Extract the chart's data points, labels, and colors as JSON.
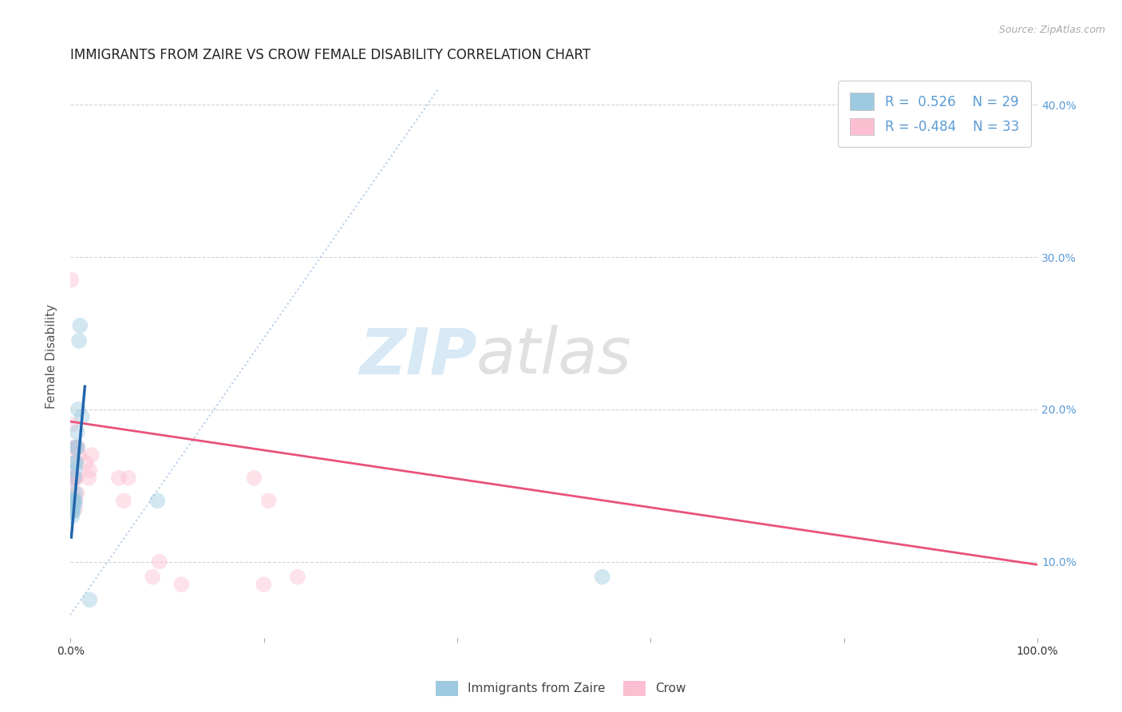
{
  "title": "IMMIGRANTS FROM ZAIRE VS CROW FEMALE DISABILITY CORRELATION CHART",
  "source": "Source: ZipAtlas.com",
  "ylabel": "Female Disability",
  "legend_labels": [
    "Immigrants from Zaire",
    "Crow"
  ],
  "legend_r_blue": "R =  0.526",
  "legend_r_pink": "R = -0.484",
  "legend_n_blue": "N = 29",
  "legend_n_pink": "N = 33",
  "blue_color": "#9ecae1",
  "pink_color": "#fcbfd2",
  "blue_line_color": "#2166ac",
  "pink_line_color": "#e8537a",
  "diag_line_color": "#aec9e8",
  "watermark": "ZIPatlas",
  "xlim": [
    0.0,
    1.0
  ],
  "ylim": [
    0.05,
    0.42
  ],
  "x_ticks": [
    0.0,
    0.2,
    0.4,
    0.6,
    0.8,
    1.0
  ],
  "y_ticks": [
    0.1,
    0.2,
    0.3,
    0.4
  ],
  "background_color": "#ffffff",
  "grid_color": "#c8c8c8",
  "title_fontsize": 12,
  "tick_fontsize": 10,
  "scatter_size": 200,
  "scatter_alpha": 0.45,
  "right_tick_color": "#5b9bd5",
  "blue_scatter_x": [
    0.001,
    0.001,
    0.001,
    0.001,
    0.002,
    0.002,
    0.002,
    0.002,
    0.003,
    0.003,
    0.003,
    0.004,
    0.004,
    0.004,
    0.005,
    0.005,
    0.005,
    0.005,
    0.006,
    0.006,
    0.007,
    0.007,
    0.008,
    0.009,
    0.01,
    0.012,
    0.02,
    0.09,
    0.55
  ],
  "blue_scatter_y": [
    0.133,
    0.135,
    0.137,
    0.14,
    0.13,
    0.133,
    0.137,
    0.14,
    0.133,
    0.137,
    0.14,
    0.137,
    0.14,
    0.155,
    0.14,
    0.145,
    0.16,
    0.165,
    0.165,
    0.175,
    0.175,
    0.185,
    0.2,
    0.245,
    0.255,
    0.195,
    0.075,
    0.14,
    0.09
  ],
  "pink_scatter_x": [
    0.001,
    0.001,
    0.001,
    0.002,
    0.002,
    0.003,
    0.003,
    0.003,
    0.004,
    0.004,
    0.004,
    0.005,
    0.005,
    0.005,
    0.006,
    0.006,
    0.007,
    0.008,
    0.009,
    0.016,
    0.019,
    0.02,
    0.022,
    0.05,
    0.055,
    0.06,
    0.085,
    0.092,
    0.115,
    0.19,
    0.2,
    0.205,
    0.235
  ],
  "pink_scatter_y": [
    0.285,
    0.19,
    0.14,
    0.145,
    0.155,
    0.14,
    0.155,
    0.175,
    0.155,
    0.155,
    0.165,
    0.135,
    0.14,
    0.155,
    0.155,
    0.175,
    0.145,
    0.175,
    0.17,
    0.165,
    0.155,
    0.16,
    0.17,
    0.155,
    0.14,
    0.155,
    0.09,
    0.1,
    0.085,
    0.155,
    0.085,
    0.14,
    0.09
  ],
  "blue_line_x": [
    0.001,
    0.015
  ],
  "blue_line_y": [
    0.116,
    0.215
  ],
  "pink_line_x": [
    0.0,
    1.0
  ],
  "pink_line_y": [
    0.192,
    0.098
  ],
  "diag_line_x": [
    0.0,
    0.38
  ],
  "diag_line_y": [
    0.065,
    0.41
  ]
}
